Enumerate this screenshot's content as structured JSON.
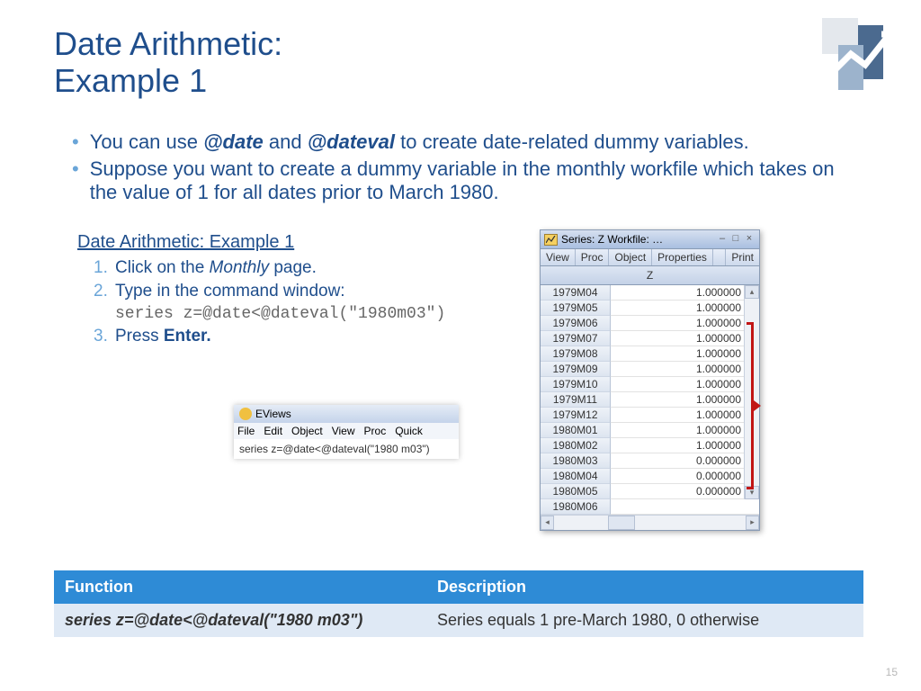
{
  "title_line1": "Date Arithmetic:",
  "title_line2": "Example 1",
  "page_number": "15",
  "colors": {
    "heading": "#1f4e8c",
    "bullet_dot": "#6aa5d8",
    "table_header_bg": "#2e8bd6",
    "table_row_bg": "#dfe9f5",
    "bracket": "#c11515"
  },
  "bullets": [
    {
      "prefix": "You can use ",
      "b1": "@date",
      "mid": " and ",
      "b2": "@dateval",
      "suffix": " to create date-related dummy variables."
    },
    {
      "full": "Suppose you want to create a dummy variable in the monthly workfile which takes on the value of 1 for all dates prior to March 1980."
    }
  ],
  "steps": {
    "title": "Date Arithmetic: Example 1",
    "items": [
      {
        "num": "1.",
        "pre": "Click on the ",
        "em": "Monthly",
        "post": " page."
      },
      {
        "num": "2.",
        "pre": "Type in the command window:"
      },
      {
        "num": "3.",
        "pre": " Press ",
        "strong": "Enter."
      }
    ],
    "code": "series z=@date<@dateval(\"1980m03\")"
  },
  "eviews_mini": {
    "title": "EViews",
    "menu": [
      "File",
      "Edit",
      "Object",
      "View",
      "Proc",
      "Quick"
    ],
    "command": "series z=@date<@dateval(\"1980 m03\")"
  },
  "series_window": {
    "title": "Series: Z  Workfile: …",
    "toolbar": [
      "View",
      "Proc",
      "Object",
      "Properties",
      "Print"
    ],
    "column_label": "Z",
    "rows": [
      {
        "date": "1979M04",
        "value": "1.000000"
      },
      {
        "date": "1979M05",
        "value": "1.000000"
      },
      {
        "date": "1979M06",
        "value": "1.000000"
      },
      {
        "date": "1979M07",
        "value": "1.000000"
      },
      {
        "date": "1979M08",
        "value": "1.000000"
      },
      {
        "date": "1979M09",
        "value": "1.000000"
      },
      {
        "date": "1979M10",
        "value": "1.000000"
      },
      {
        "date": "1979M11",
        "value": "1.000000"
      },
      {
        "date": "1979M12",
        "value": "1.000000"
      },
      {
        "date": "1980M01",
        "value": "1.000000"
      },
      {
        "date": "1980M02",
        "value": "1.000000"
      },
      {
        "date": "1980M03",
        "value": "0.000000"
      },
      {
        "date": "1980M04",
        "value": "0.000000"
      },
      {
        "date": "1980M05",
        "value": "0.000000"
      },
      {
        "date": "1980M06",
        "value": ""
      }
    ]
  },
  "function_table": {
    "headers": [
      "Function",
      "Description"
    ],
    "rows": [
      {
        "function": "series z=@date<@dateval(\"1980 m03\")",
        "description": "Series equals 1 pre-March 1980, 0 otherwise"
      }
    ]
  }
}
